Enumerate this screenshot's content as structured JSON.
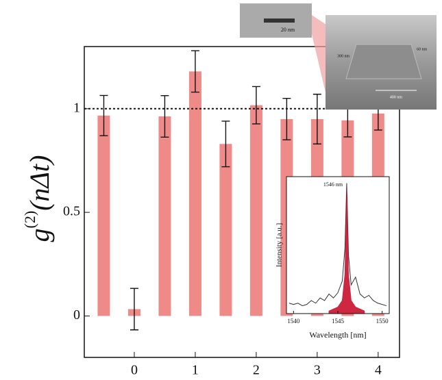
{
  "chart_data": [
    {
      "type": "bar",
      "x": [
        -0.5,
        0,
        0.5,
        1,
        1.5,
        2,
        2.5,
        3,
        3.5,
        4
      ],
      "values": [
        0.967,
        0.033,
        0.963,
        1.18,
        0.83,
        1.017,
        0.95,
        0.95,
        0.944,
        0.977
      ],
      "errors": [
        0.097,
        0.1,
        0.1,
        0.1,
        0.11,
        0.09,
        0.1,
        0.12,
        0.08,
        0.08
      ],
      "color": "#ee8a88",
      "xlim": [
        -0.82,
        4.35
      ],
      "ylim": [
        -0.2,
        1.3
      ],
      "xticks": [
        0,
        1,
        2,
        3,
        4
      ],
      "yticks": [
        0,
        0.5,
        1
      ],
      "hline": 1,
      "y_label": {
        "base": "g",
        "sup": "(2)",
        "rest": "(nΔt)"
      }
    },
    {
      "type": "line",
      "x_label": "Wavelength [nm]",
      "y_label": "Intensity [a.u.]",
      "annotation": "1546 nm",
      "xlim": [
        1539.2,
        1550.8
      ],
      "ylim": [
        0,
        1.05
      ],
      "xticks": [
        1540,
        1545,
        1550
      ],
      "series": [
        {
          "type": "line",
          "color": "#333333",
          "x": [
            1539.5,
            1540,
            1540.5,
            1541,
            1541.5,
            1542,
            1542.5,
            1543,
            1543.5,
            1544,
            1544.5,
            1545,
            1545.5,
            1545.8,
            1546,
            1546.2,
            1546.5,
            1547,
            1547.5,
            1548,
            1548.5,
            1549,
            1549.5,
            1550,
            1550.5
          ],
          "values": [
            0.08,
            0.07,
            0.08,
            0.06,
            0.07,
            0.1,
            0.08,
            0.12,
            0.1,
            0.15,
            0.12,
            0.16,
            0.25,
            0.5,
            1.0,
            0.45,
            0.22,
            0.28,
            0.15,
            0.12,
            0.14,
            0.1,
            0.08,
            0.07,
            0.06
          ]
        },
        {
          "type": "area",
          "color": "#c8102e",
          "x": [
            1544,
            1545,
            1545.5,
            1545.8,
            1546,
            1546.2,
            1546.5,
            1547,
            1548
          ],
          "values": [
            0.02,
            0.05,
            0.1,
            0.3,
            0.95,
            0.3,
            0.1,
            0.05,
            0.02
          ]
        }
      ]
    }
  ],
  "images": {
    "small_scale": "20 nm",
    "big_scale": "400 nm",
    "height_left": "300 nm",
    "height_right": "60 nm"
  }
}
